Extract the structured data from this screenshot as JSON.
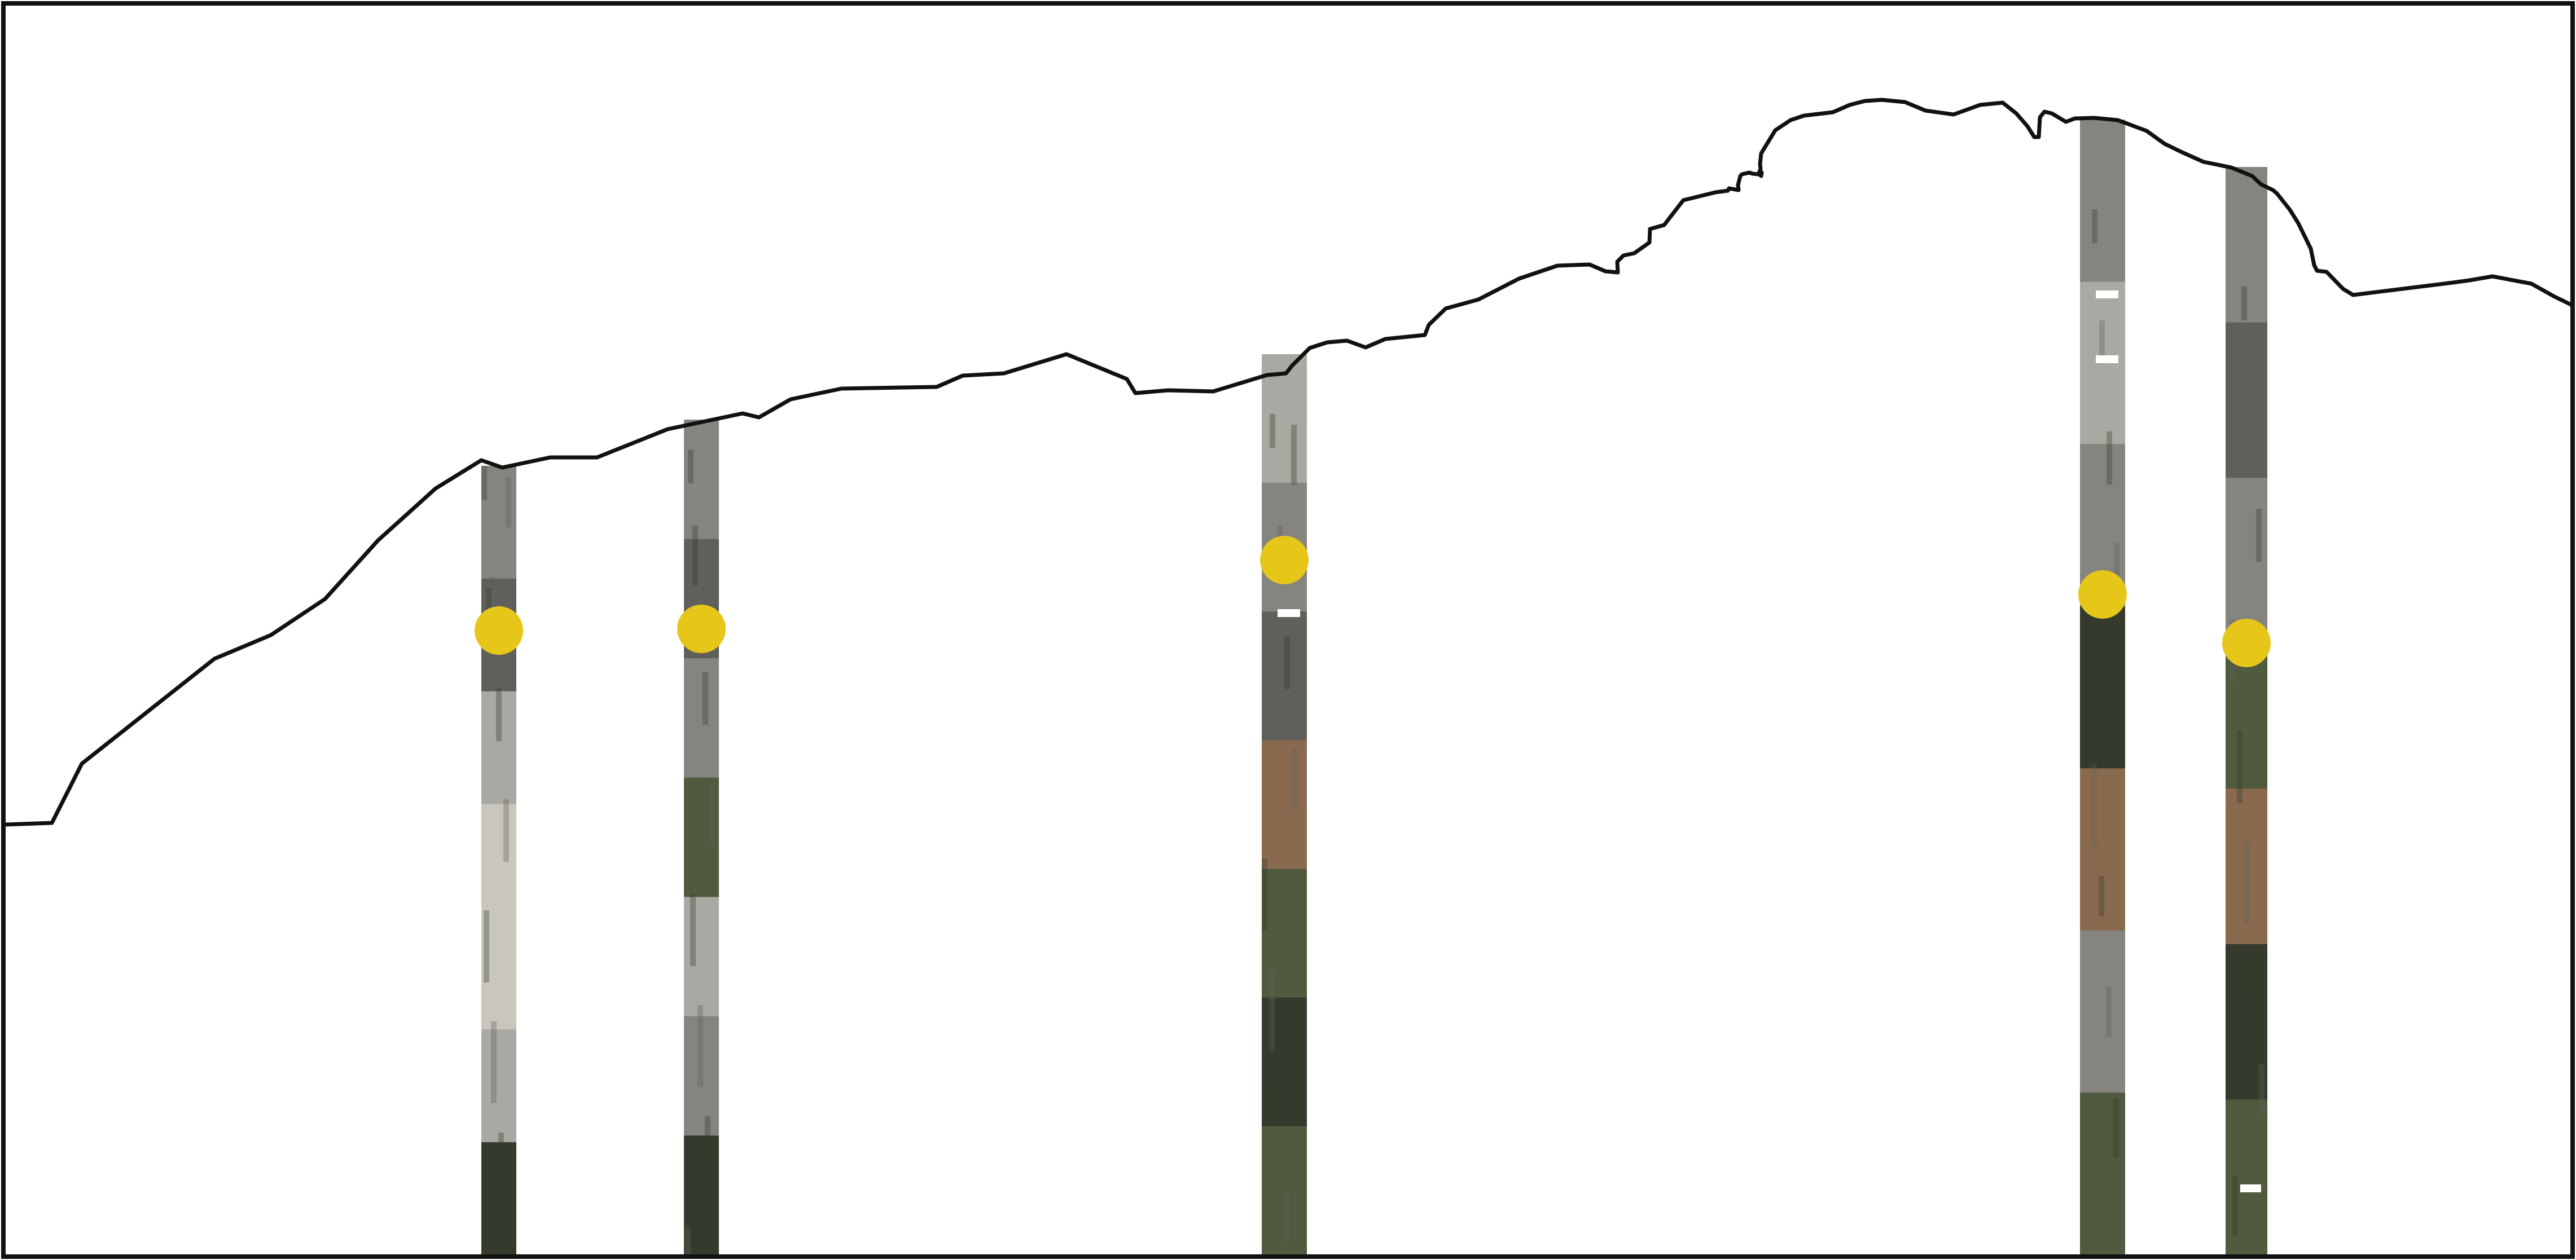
{
  "colors": {
    "background": "#ffffff",
    "frame": "#111111",
    "ridge_line": "#111111",
    "marker": "#e6c619",
    "rock_light": "#a9a8a2",
    "rock_mid": "#85847f",
    "rock_dark": "#5f605b",
    "vegetation": "#4f5a3e",
    "vegetation_dark": "#343b2c",
    "scree": "#c9c6bd",
    "rust": "#8a6a4f",
    "snow": "#ffffff"
  },
  "ridge_profile": {
    "description_shape": "mountain-ridge-silhouette-line"
  },
  "rock_columns": [
    {
      "id": "column-1",
      "marker": true,
      "palette": [
        "rock_mid",
        "rock_dark",
        "rock_light",
        "scree",
        "scree",
        "rock_light",
        "vegetation_dark"
      ]
    },
    {
      "id": "column-2",
      "marker": true,
      "palette": [
        "rock_mid",
        "rock_dark",
        "rock_mid",
        "vegetation",
        "rock_light",
        "rock_mid",
        "vegetation_dark"
      ]
    },
    {
      "id": "column-3",
      "marker": true,
      "palette": [
        "rock_light",
        "rock_mid",
        "rock_dark",
        "rust",
        "vegetation",
        "vegetation_dark",
        "vegetation"
      ]
    },
    {
      "id": "column-4",
      "marker": true,
      "palette": [
        "rock_mid",
        "rock_light",
        "rock_mid",
        "vegetation_dark",
        "rust",
        "rock_mid",
        "vegetation"
      ]
    },
    {
      "id": "column-5",
      "marker": true,
      "palette": [
        "rock_mid",
        "rock_dark",
        "rock_mid",
        "vegetation",
        "rust",
        "vegetation_dark",
        "vegetation"
      ]
    }
  ]
}
